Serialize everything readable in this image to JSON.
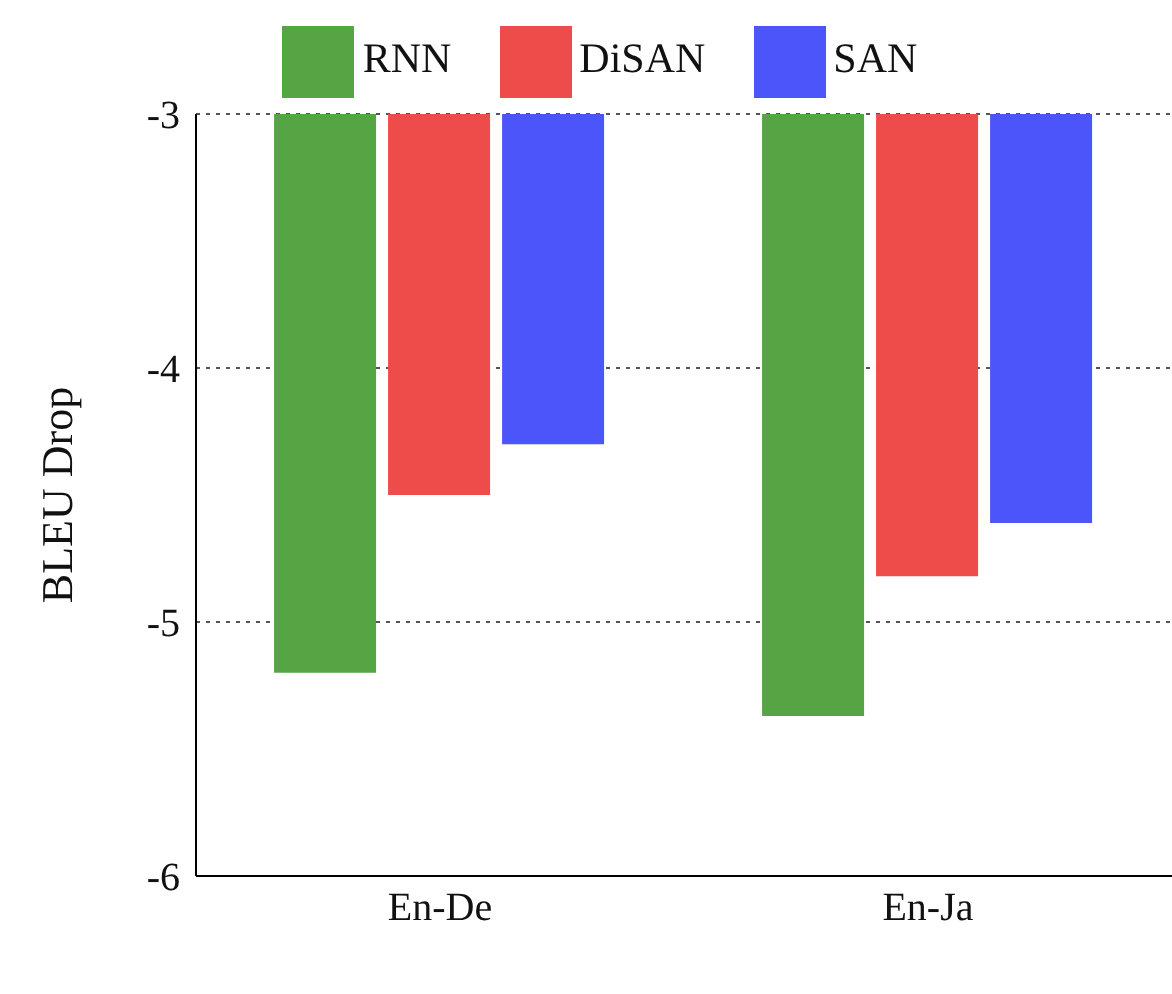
{
  "chart_data": {
    "type": "bar",
    "ylabel": "BLEU Drop",
    "categories": [
      "En-De",
      "En-Ja"
    ],
    "series": [
      {
        "name": "RNN",
        "color": "#55a544",
        "values": [
          -5.2,
          -5.37
        ]
      },
      {
        "name": "DiSAN",
        "color": "#ee4b4b",
        "values": [
          -4.5,
          -4.82
        ]
      },
      {
        "name": "SAN",
        "color": "#4b55fa",
        "values": [
          -4.3,
          -4.61
        ]
      }
    ],
    "ylim": [
      -6,
      -3
    ],
    "yticks": [
      -6,
      -5,
      -4,
      -3
    ],
    "grid": "y",
    "legend": "top"
  }
}
